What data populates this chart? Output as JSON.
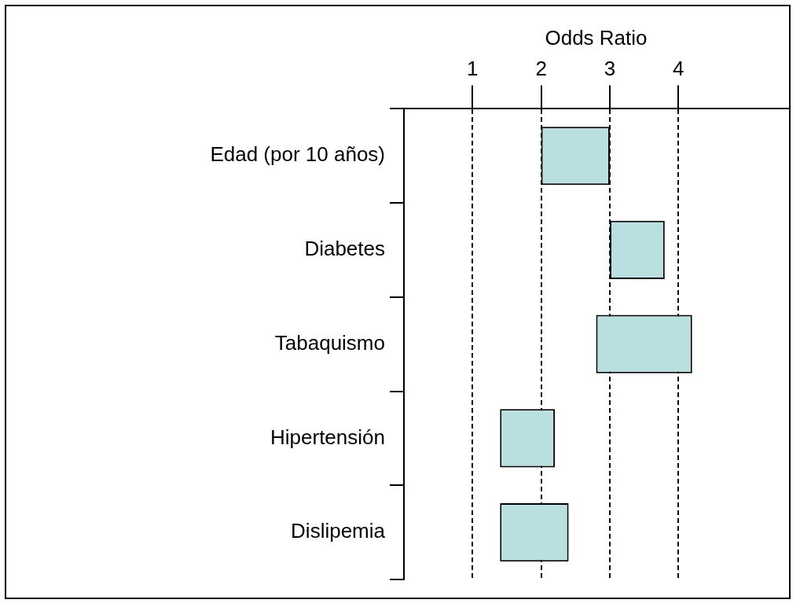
{
  "chart_data": {
    "type": "bar",
    "orientation": "horizontal",
    "xlabel": "Odds Ratio",
    "categories": [
      "Edad (por 10 años)",
      "Diabetes",
      "Tabaquismo",
      "Hipertensión",
      "Dislipemia"
    ],
    "base": [
      2.0,
      3.0,
      2.8,
      1.4,
      1.4
    ],
    "values": [
      1.0,
      0.8,
      1.4,
      0.8,
      1.0
    ],
    "color": "#b9dfe0",
    "xlim": [
      0,
      5.6
    ],
    "xticks": [
      1,
      2,
      3,
      4
    ],
    "grid": "x",
    "legend": false
  }
}
